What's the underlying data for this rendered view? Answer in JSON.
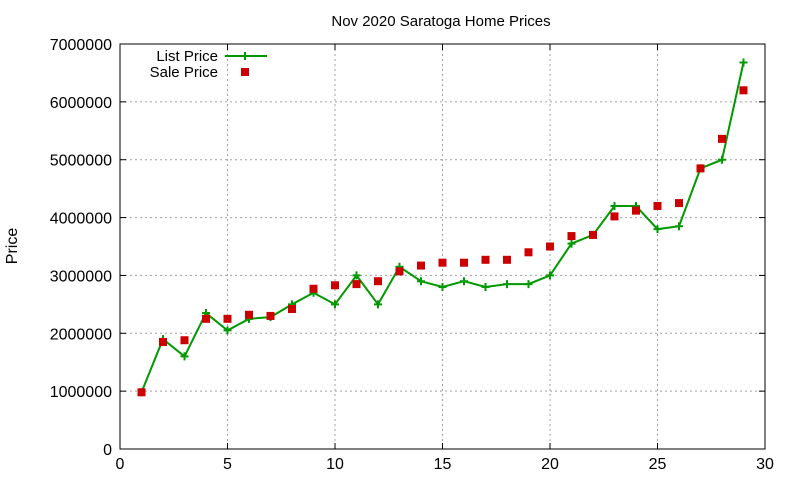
{
  "chart_data": {
    "type": "line",
    "title": "Nov 2020 Saratoga Home Prices",
    "xlabel": "",
    "ylabel": "Price",
    "xlim": [
      0,
      30
    ],
    "ylim": [
      0,
      7000000
    ],
    "x_ticks": [
      0,
      5,
      10,
      15,
      20,
      25,
      30
    ],
    "y_ticks": [
      0,
      1000000,
      2000000,
      3000000,
      4000000,
      5000000,
      6000000,
      7000000
    ],
    "grid": true,
    "legend_position": "top-left",
    "series": [
      {
        "name": "List Price",
        "style": "line+cross",
        "color": "#009900",
        "x": [
          1,
          2,
          3,
          4,
          5,
          6,
          7,
          8,
          9,
          10,
          11,
          12,
          13,
          14,
          15,
          16,
          17,
          18,
          19,
          20,
          21,
          22,
          23,
          24,
          25,
          26,
          27,
          28,
          29
        ],
        "values": [
          980000,
          1900000,
          1600000,
          2350000,
          2050000,
          2250000,
          2280000,
          2500000,
          2700000,
          2500000,
          3000000,
          2500000,
          3150000,
          2900000,
          2800000,
          2900000,
          2800000,
          2850000,
          2850000,
          3000000,
          3550000,
          3700000,
          4200000,
          4200000,
          3800000,
          3850000,
          4850000,
          5000000,
          6680000
        ]
      },
      {
        "name": "Sale Price",
        "style": "square",
        "color": "#cc0000",
        "x": [
          1,
          2,
          3,
          4,
          5,
          6,
          7,
          8,
          9,
          10,
          11,
          12,
          13,
          14,
          15,
          16,
          17,
          18,
          19,
          20,
          21,
          22,
          23,
          24,
          25,
          26,
          27,
          28,
          29
        ],
        "values": [
          980000,
          1850000,
          1880000,
          2250000,
          2250000,
          2320000,
          2300000,
          2420000,
          2770000,
          2830000,
          2850000,
          2900000,
          3070000,
          3170000,
          3220000,
          3220000,
          3270000,
          3270000,
          3400000,
          3500000,
          3680000,
          3700000,
          4020000,
          4120000,
          4200000,
          4250000,
          4850000,
          5360000,
          6200000
        ]
      }
    ]
  }
}
